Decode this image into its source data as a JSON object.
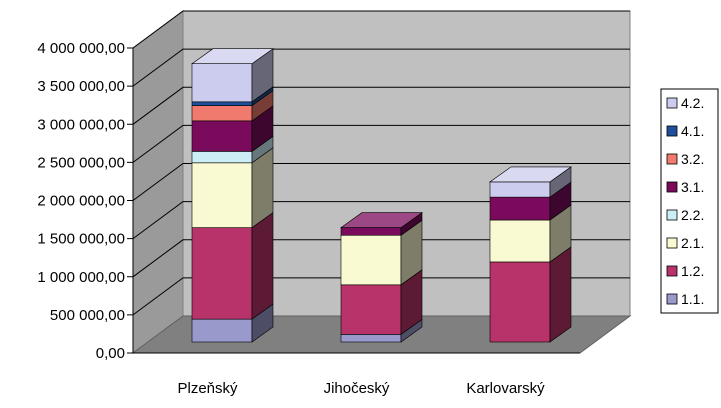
{
  "chart_data": {
    "type": "bar",
    "stacked": true,
    "three_d": true,
    "title": "",
    "xlabel": "",
    "ylabel": "",
    "ylim": [
      0,
      4000000
    ],
    "yticks": [
      0,
      500000,
      1000000,
      1500000,
      2000000,
      2500000,
      3000000,
      3500000,
      4000000
    ],
    "ytick_labels": [
      "0,00",
      "500 000,00",
      "1 000 000,00",
      "1 500 000,00",
      "2 000 000,00",
      "2 500 000,00",
      "3 000 000,00",
      "3 500 000,00",
      "4 000 000,00"
    ],
    "grid": true,
    "legend_position": "right",
    "categories": [
      "Plzeňský",
      "Jihočeský",
      "Karlovarský"
    ],
    "series": [
      {
        "name": "1.1.",
        "color": "#9999cc",
        "values": [
          300000,
          100000,
          0
        ]
      },
      {
        "name": "1.2.",
        "color": "#b8336a",
        "values": [
          1200000,
          650000,
          1050000
        ]
      },
      {
        "name": "2.1.",
        "color": "#fafad2",
        "values": [
          850000,
          650000,
          550000
        ]
      },
      {
        "name": "2.2.",
        "color": "#cceff5",
        "values": [
          150000,
          0,
          0
        ]
      },
      {
        "name": "3.1.",
        "color": "#7a0b5c",
        "values": [
          400000,
          100000,
          300000
        ]
      },
      {
        "name": "3.2.",
        "color": "#f07a6e",
        "values": [
          200000,
          0,
          0
        ]
      },
      {
        "name": "4.1.",
        "color": "#1f4f9a",
        "values": [
          50000,
          0,
          0
        ]
      },
      {
        "name": "4.2.",
        "color": "#ccccee",
        "values": [
          500000,
          0,
          200000
        ]
      }
    ]
  }
}
